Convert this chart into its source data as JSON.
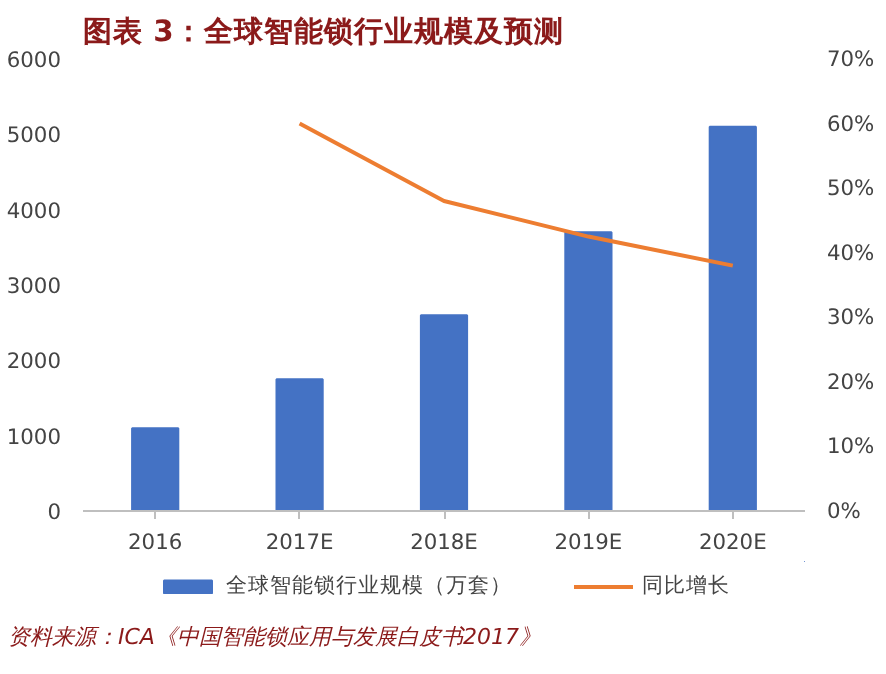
{
  "chart_data": {
    "type": "bar",
    "title": "图表 3：全球智能锁行业规模及预测",
    "categories": [
      "2016",
      "2017E",
      "2018E",
      "2019E",
      "2020E"
    ],
    "series": [
      {
        "name": "全球智能锁行业规模（万套）",
        "color": "#4472c4",
        "values": [
          1100,
          1750,
          2600,
          3700,
          5100
        ]
      },
      {
        "name": "同比增长",
        "type": "line",
        "axis": "y2",
        "color": "#ed7d31",
        "values": [
          null,
          60,
          48,
          42.5,
          38
        ]
      }
    ],
    "ylim": [
      0,
      6000
    ],
    "yticks": [
      0,
      1000,
      2000,
      3000,
      4000,
      5000,
      6000
    ],
    "y2lim": [
      0,
      70
    ],
    "y2ticks": [
      {
        "value": 0,
        "label": "0%"
      },
      {
        "value": 10,
        "label": "10%"
      },
      {
        "value": 20,
        "label": "20%"
      },
      {
        "value": 30,
        "label": "30%"
      },
      {
        "value": 40,
        "label": "40%"
      },
      {
        "value": 50,
        "label": "50%"
      },
      {
        "value": 60,
        "label": "60%"
      },
      {
        "value": 70,
        "label": "70%"
      }
    ],
    "grid": false,
    "legend": "bottom",
    "marker": "none",
    "annotations": [
      "资料来源：ICA《中国智能锁应用与发展白皮书2017》"
    ]
  }
}
